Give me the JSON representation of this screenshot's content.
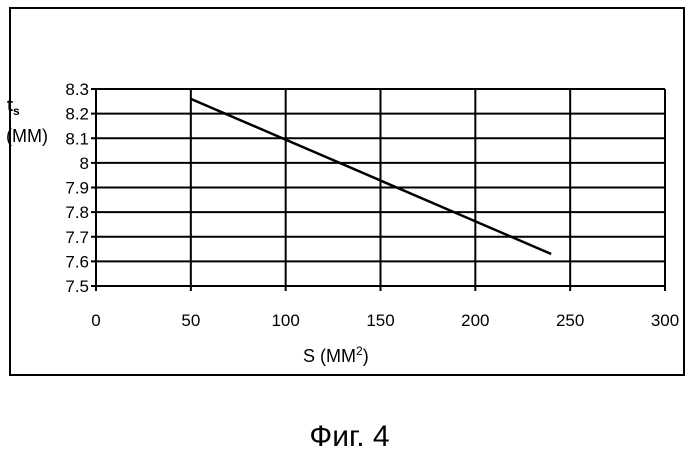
{
  "chart_data": {
    "type": "line",
    "ylabel": "t",
    "ylabel_sub": "s",
    "ylabel_unit": "(ММ)",
    "xlabel": "S",
    "xlabel_unit": "(ММ",
    "xlabel_unit_sup": "2",
    "xlabel_unit_close": ")",
    "xlim": [
      0,
      300
    ],
    "ylim": [
      7.5,
      8.3
    ],
    "x_ticks": [
      0,
      50,
      100,
      150,
      200,
      250,
      300
    ],
    "x_tick_labels": [
      "0",
      "50",
      "100",
      "150",
      "200",
      "250",
      "300"
    ],
    "y_ticks": [
      7.5,
      7.6,
      7.7,
      7.8,
      7.9,
      8.0,
      8.1,
      8.2,
      8.3
    ],
    "y_tick_labels": [
      "7.5",
      "7.6",
      "7.7",
      "7.8",
      "7.9",
      "8",
      "8.1",
      "8.2",
      "8.3"
    ],
    "grid": true,
    "series": [
      {
        "x": [
          50,
          240
        ],
        "y": [
          8.26,
          7.63
        ],
        "color": "#000000"
      }
    ]
  },
  "caption": "Фиг. 4"
}
